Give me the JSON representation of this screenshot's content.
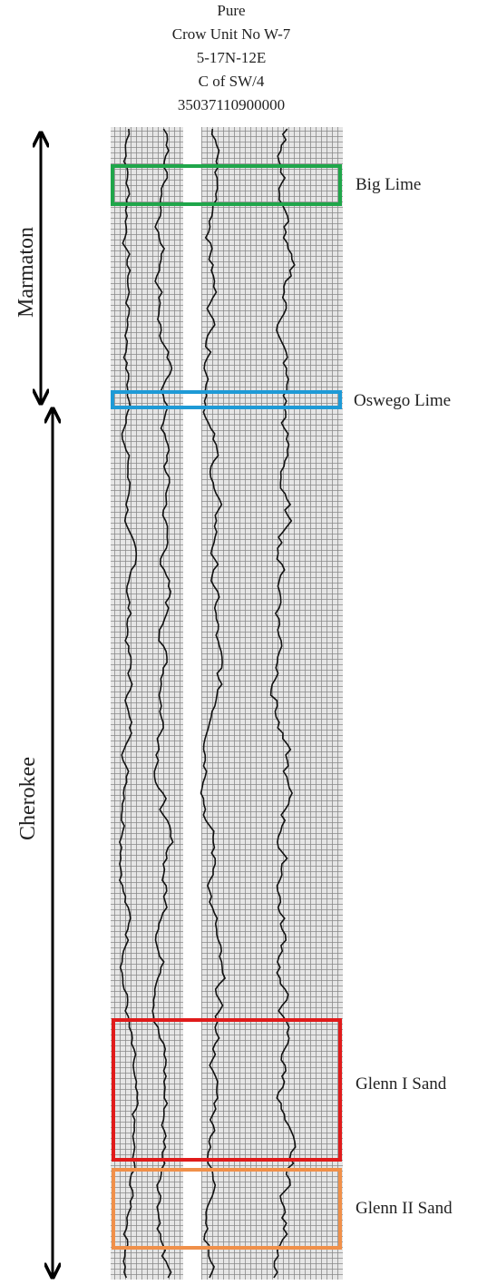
{
  "header": {
    "lines": [
      "Pure",
      "Crow Unit No W-7",
      "5-17N-12E",
      "C of SW/4",
      "35037110900000"
    ]
  },
  "formations": [
    {
      "label": "Marmaton"
    },
    {
      "label": "Cherokee"
    }
  ],
  "zones": [
    {
      "label": "Big Lime"
    },
    {
      "label": "Oswego Lime"
    },
    {
      "label": "Glenn I Sand"
    },
    {
      "label": "Glenn II Sand"
    }
  ]
}
